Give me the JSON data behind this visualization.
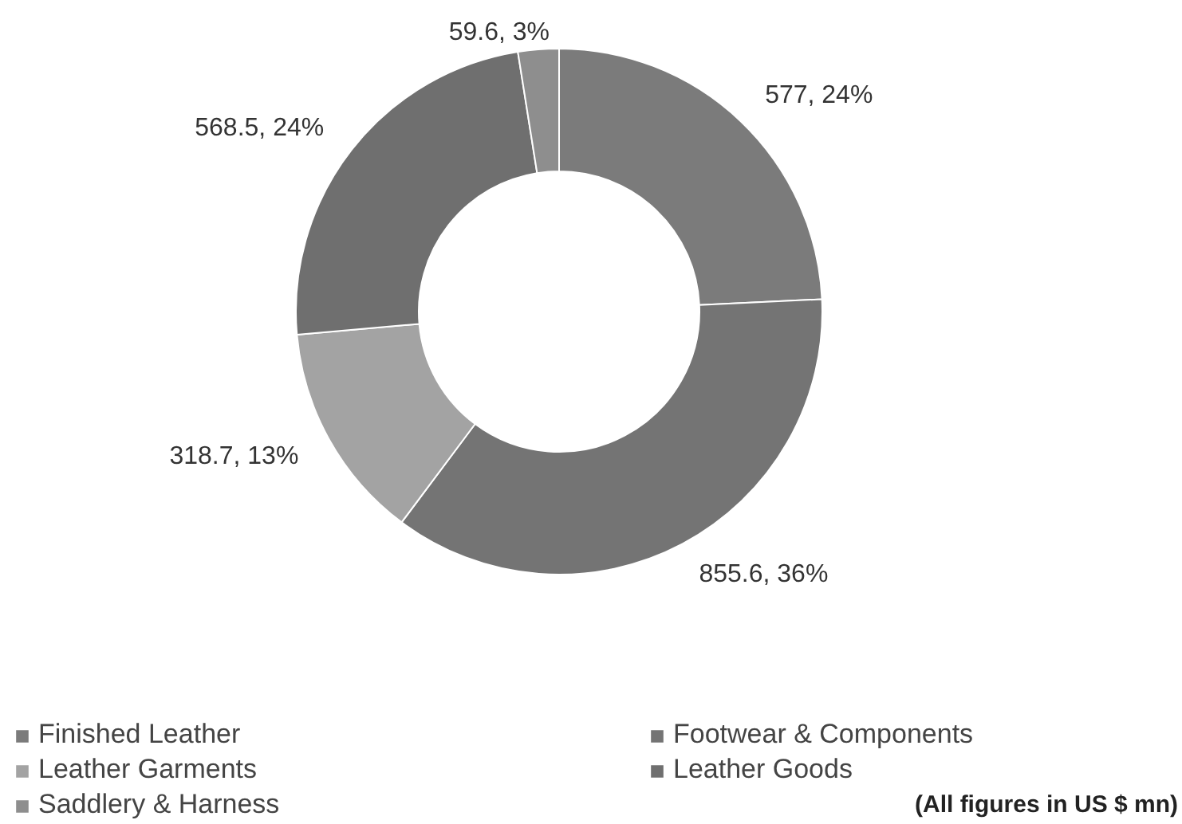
{
  "chart_data": {
    "type": "donut",
    "categories": [
      "Finished Leather",
      "Footwear & Components",
      "Leather Garments",
      "Leather Goods",
      "Saddlery & Harness"
    ],
    "values": [
      577,
      855.6,
      318.7,
      568.5,
      59.6
    ],
    "colors": [
      "#7b7b7b",
      "#747474",
      "#a3a3a3",
      "#6f6f6f",
      "#8e8e8e"
    ],
    "value_labels": [
      "577, 24%",
      "855.6, 36%",
      "318.7, 13%",
      "568.5, 24%",
      "59.6, 3%"
    ],
    "legend": "bottom",
    "annotations": [
      "(All figures in US $ mn)"
    ]
  }
}
